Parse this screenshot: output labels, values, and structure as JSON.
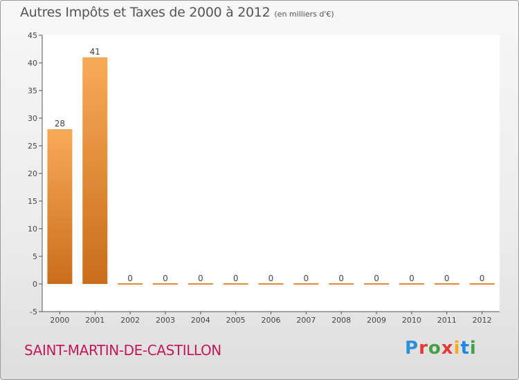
{
  "title": "Autres Impôts et Taxes de 2000 à 2012",
  "subtitle": "(en milliers d'€)",
  "commune": "SAINT-MARTIN-DE-CASTILLON",
  "logo_text": "Proxiti",
  "colors": {
    "bar_light": "#f8ab57",
    "bar_dark": "#c86d1c",
    "label": "#c2185b"
  },
  "chart_data": {
    "type": "bar",
    "categories": [
      "2000",
      "2001",
      "2002",
      "2003",
      "2004",
      "2005",
      "2006",
      "2007",
      "2008",
      "2009",
      "2010",
      "2011",
      "2012"
    ],
    "values": [
      28,
      41,
      0,
      0,
      0,
      0,
      0,
      0,
      0,
      0,
      0,
      0,
      0
    ],
    "data_labels": [
      "28",
      "41",
      "0",
      "0",
      "0",
      "0",
      "0",
      "0",
      "0",
      "0",
      "0",
      "0",
      "0"
    ],
    "title": "Autres Impôts et Taxes de 2000 à 2012",
    "xlabel": "",
    "ylabel": "",
    "ylim": [
      -5,
      45
    ],
    "yticks": [
      -5,
      0,
      5,
      10,
      15,
      20,
      25,
      30,
      35,
      40,
      45
    ],
    "grid": false
  }
}
